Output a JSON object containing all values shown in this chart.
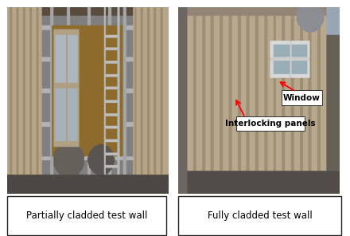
{
  "fig_width": 4.4,
  "fig_height": 2.96,
  "dpi": 100,
  "background_color": "#ffffff",
  "left_caption": "Partially cladded test wall",
  "right_caption": "Fully cladded test wall",
  "annotation_window_text": "Window",
  "annotation_panels_text": "Interlocking panels",
  "caption_fontsize": 8.5,
  "annotation_fontsize": 7.5,
  "border_lw": 1.0
}
